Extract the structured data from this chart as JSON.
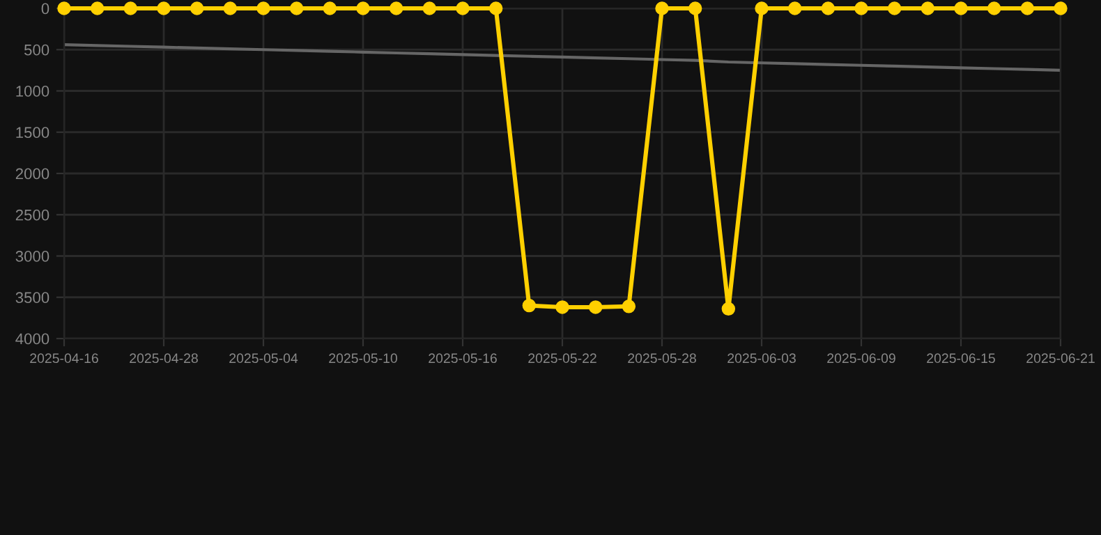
{
  "chart_data": {
    "type": "line",
    "categories": [
      "2025-04-16",
      null,
      null,
      "2025-04-28",
      null,
      null,
      "2025-05-04",
      null,
      null,
      "2025-05-10",
      null,
      null,
      "2025-05-16",
      null,
      null,
      "2025-05-22",
      null,
      null,
      "2025-05-28",
      null,
      null,
      "2025-06-03",
      null,
      null,
      "2025-06-09",
      null,
      null,
      "2025-06-15",
      null,
      null,
      "2025-06-21"
    ],
    "series": [
      {
        "color": "#ffd000",
        "marker": "circle",
        "values": [
          0,
          0,
          0,
          0,
          0,
          0,
          0,
          0,
          0,
          0,
          0,
          0,
          0,
          0,
          3600,
          3620,
          3620,
          3610,
          0,
          0,
          3640,
          0,
          0,
          0,
          0,
          0,
          0,
          0,
          0,
          0,
          0
        ]
      },
      {
        "color": "#666666",
        "marker": "none",
        "values": [
          440,
          450,
          460,
          470,
          480,
          490,
          500,
          510,
          520,
          530,
          540,
          550,
          560,
          570,
          580,
          590,
          600,
          610,
          620,
          630,
          650,
          660,
          670,
          680,
          690,
          700,
          710,
          720,
          730,
          740,
          750
        ]
      }
    ],
    "ylim": [
      4000,
      0
    ],
    "yticks": [
      0,
      500,
      1000,
      1500,
      2000,
      2500,
      3000,
      3500,
      4000
    ],
    "grid": true
  }
}
